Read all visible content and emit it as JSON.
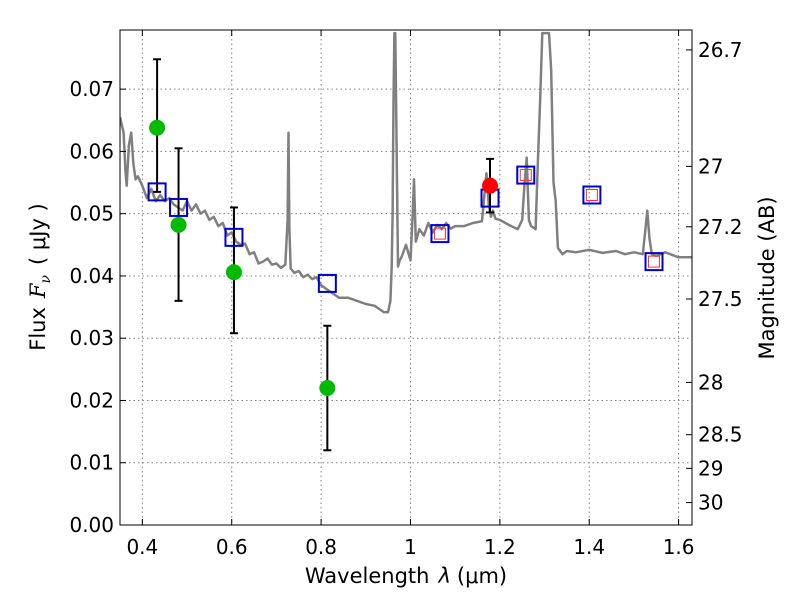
{
  "chart_data": {
    "type": "scatter",
    "title": "",
    "xlabel": "Wavelength  λ (μm)",
    "ylabel": "Flux  F_ν  ( μJy )",
    "ylabel_parts": {
      "prefix": "Flux",
      "symbol": "F",
      "subscript": "ν",
      "unit": "( μJy )"
    },
    "xlabel_parts": {
      "prefix": "Wavelength",
      "symbol": "λ",
      "unit": "(μm)"
    },
    "y2label": "Magnitude (AB)",
    "xlim": [
      0.35,
      1.63
    ],
    "ylim": [
      0.0,
      0.0795
    ],
    "grid": true,
    "x_ticks": [
      0.4,
      0.6,
      0.8,
      1.0,
      1.2,
      1.4,
      1.6
    ],
    "x_tick_labels": [
      "0.4",
      "0.6",
      "0.8",
      "1",
      "1.2",
      "1.4",
      "1.6"
    ],
    "y_ticks": [
      0.0,
      0.01,
      0.02,
      0.03,
      0.04,
      0.05,
      0.06,
      0.07
    ],
    "y_tick_labels": [
      "0.00",
      "0.01",
      "0.02",
      "0.03",
      "0.04",
      "0.05",
      "0.06",
      "0.07"
    ],
    "y2_ticks": [
      {
        "label": "26.7",
        "flux": 0.0763
      },
      {
        "label": "27",
        "flux": 0.0576
      },
      {
        "label": "27.2",
        "flux": 0.0479
      },
      {
        "label": "27.5",
        "flux": 0.0363
      },
      {
        "label": "28",
        "flux": 0.0229
      },
      {
        "label": "28.5",
        "flux": 0.0145
      },
      {
        "label": "29",
        "flux": 0.0091
      },
      {
        "label": "30",
        "flux": 0.0036
      }
    ],
    "series": [
      {
        "name": "template spectrum",
        "kind": "line",
        "color": "#808080",
        "x": [
          0.35,
          0.358,
          0.362,
          0.365,
          0.37,
          0.375,
          0.38,
          0.385,
          0.39,
          0.4,
          0.41,
          0.42,
          0.43,
          0.44,
          0.45,
          0.46,
          0.47,
          0.48,
          0.49,
          0.5,
          0.51,
          0.52,
          0.53,
          0.54,
          0.55,
          0.56,
          0.57,
          0.58,
          0.59,
          0.6,
          0.61,
          0.62,
          0.63,
          0.64,
          0.65,
          0.66,
          0.67,
          0.68,
          0.69,
          0.7,
          0.71,
          0.72,
          0.725,
          0.727,
          0.729,
          0.732,
          0.74,
          0.75,
          0.76,
          0.77,
          0.78,
          0.79,
          0.8,
          0.82,
          0.84,
          0.86,
          0.88,
          0.9,
          0.92,
          0.94,
          0.95,
          0.955,
          0.958,
          0.96,
          0.962,
          0.964,
          0.966,
          0.968,
          0.972,
          0.976,
          0.98,
          0.99,
          1.0,
          1.005,
          1.008,
          1.012,
          1.02,
          1.03,
          1.04,
          1.05,
          1.06,
          1.07,
          1.08,
          1.09,
          1.1,
          1.12,
          1.14,
          1.16,
          1.17,
          1.175,
          1.18,
          1.185,
          1.19,
          1.2,
          1.22,
          1.24,
          1.25,
          1.255,
          1.26,
          1.265,
          1.27,
          1.28,
          1.285,
          1.29,
          1.295,
          1.3,
          1.305,
          1.31,
          1.315,
          1.318,
          1.32,
          1.325,
          1.33,
          1.34,
          1.35,
          1.37,
          1.4,
          1.43,
          1.46,
          1.48,
          1.5,
          1.52,
          1.525,
          1.53,
          1.535,
          1.54,
          1.55,
          1.57,
          1.6,
          1.63
        ],
        "values": [
          0.0655,
          0.063,
          0.057,
          0.0545,
          0.061,
          0.063,
          0.058,
          0.0555,
          0.056,
          0.0545,
          0.0525,
          0.054,
          0.052,
          0.053,
          0.052,
          0.0525,
          0.0515,
          0.051,
          0.0505,
          0.052,
          0.0505,
          0.0515,
          0.05,
          0.0505,
          0.049,
          0.0495,
          0.048,
          0.0485,
          0.0465,
          0.047,
          0.0455,
          0.045,
          0.0452,
          0.0435,
          0.0438,
          0.042,
          0.0423,
          0.0428,
          0.0418,
          0.042,
          0.0413,
          0.0418,
          0.049,
          0.063,
          0.0475,
          0.0412,
          0.0405,
          0.0408,
          0.0398,
          0.0402,
          0.0395,
          0.0398,
          0.0385,
          0.0375,
          0.0365,
          0.0365,
          0.036,
          0.0355,
          0.0352,
          0.0342,
          0.0342,
          0.036,
          0.0415,
          0.05,
          0.068,
          0.079,
          0.079,
          0.0665,
          0.0415,
          0.0425,
          0.043,
          0.045,
          0.0425,
          0.05,
          0.0555,
          0.0455,
          0.0475,
          0.0465,
          0.0485,
          0.047,
          0.0482,
          0.0475,
          0.0485,
          0.0476,
          0.048,
          0.048,
          0.0485,
          0.0488,
          0.0565,
          0.0515,
          0.0495,
          0.0505,
          0.0492,
          0.049,
          0.0482,
          0.0475,
          0.049,
          0.0545,
          0.059,
          0.049,
          0.048,
          0.0475,
          0.058,
          0.068,
          0.079,
          0.079,
          0.079,
          0.079,
          0.073,
          0.062,
          0.055,
          0.052,
          0.0445,
          0.0435,
          0.044,
          0.0438,
          0.0442,
          0.0437,
          0.044,
          0.0435,
          0.0438,
          0.0435,
          0.047,
          0.0505,
          0.046,
          0.0435,
          0.0432,
          0.0438,
          0.043,
          0.043
        ]
      },
      {
        "name": "model photometry",
        "kind": "open-square",
        "color": "#0000cc",
        "x": [
          0.433,
          0.481,
          0.605,
          0.814,
          1.066,
          1.178,
          1.258,
          1.406,
          1.545
        ],
        "values": [
          0.0535,
          0.051,
          0.0462,
          0.0388,
          0.0468,
          0.0525,
          0.0562,
          0.053,
          0.0423
        ]
      },
      {
        "name": "observed detections",
        "kind": "filled-circle",
        "color": "#00bb00",
        "x": [
          0.433,
          0.481,
          0.605,
          0.814
        ],
        "values": [
          0.0638,
          0.0482,
          0.0406,
          0.022
        ],
        "err_low": [
          0.0535,
          0.036,
          0.0308,
          0.012
        ],
        "err_high": [
          0.0748,
          0.0605,
          0.051,
          0.032
        ]
      },
      {
        "name": "observed red point",
        "kind": "filled-circle",
        "color": "#ff0000",
        "x": [
          1.178
        ],
        "values": [
          0.0545
        ],
        "err_low": [
          0.0502
        ],
        "err_high": [
          0.0588
        ]
      },
      {
        "name": "small red squares",
        "kind": "small-open-square",
        "color": "#ff3333",
        "x": [
          1.066,
          1.258,
          1.406,
          1.545
        ],
        "values": [
          0.0468,
          0.0562,
          0.053,
          0.0423
        ]
      }
    ]
  }
}
